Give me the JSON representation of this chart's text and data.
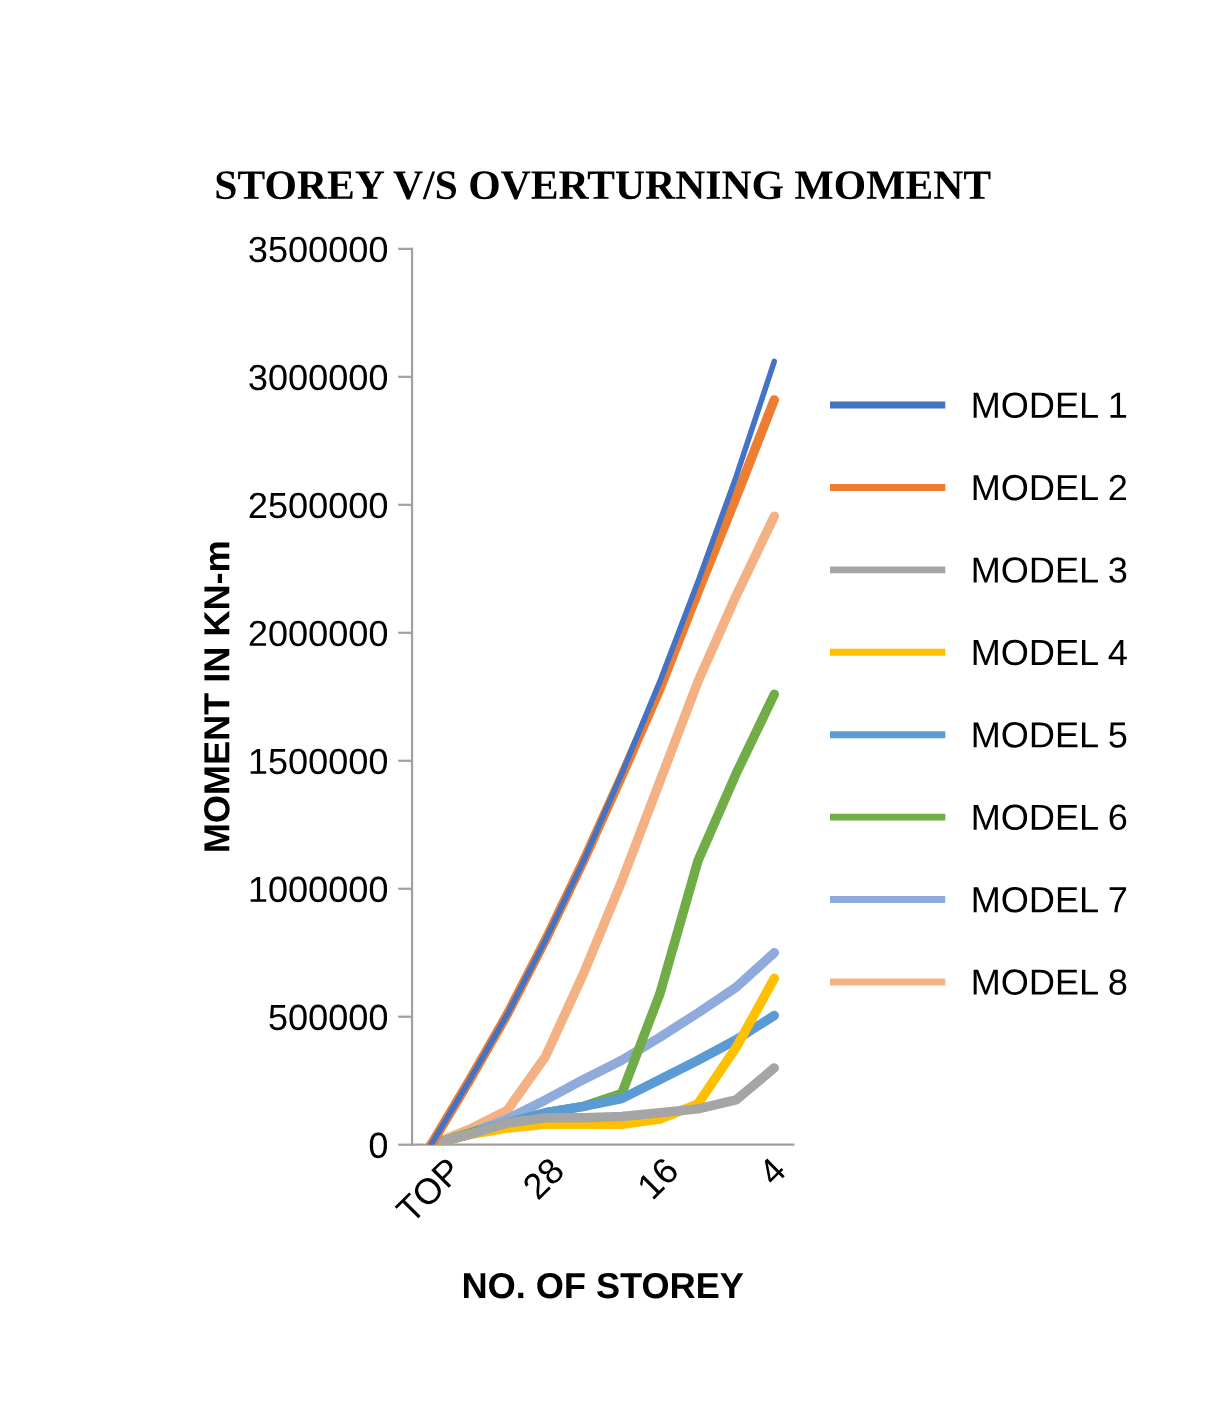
{
  "chart_data": {
    "type": "line",
    "title": "STOREY V/S OVERTURNING MOMENT",
    "xlabel": "NO. OF STOREY",
    "ylabel": "MOMENT IN KN-m",
    "categories": [
      "TOP",
      null,
      null,
      "28",
      null,
      null,
      "16",
      null,
      null,
      "4"
    ],
    "ylim": [
      0,
      3500000
    ],
    "yticks": [
      0,
      500000,
      1000000,
      1500000,
      2000000,
      2500000,
      3000000,
      3500000
    ],
    "grid": false,
    "legend": "right",
    "marker": "none",
    "line_style": "solid",
    "series": [
      {
        "name": "MODEL 1",
        "color": "#4472c4",
        "values": [
          0,
          250000,
          510000,
          800000,
          1110000,
          1450000,
          1810000,
          2200000,
          2610000,
          3060000
        ]
      },
      {
        "name": "MODEL 2",
        "color": "#ed7d31",
        "values": [
          0,
          250000,
          510000,
          800000,
          1110000,
          1440000,
          1780000,
          2160000,
          2530000,
          2910000
        ]
      },
      {
        "name": "MODEL 3",
        "color": "#a5a5a5",
        "values": [
          0,
          40000,
          85000,
          105000,
          105000,
          110000,
          125000,
          140000,
          175000,
          300000
        ]
      },
      {
        "name": "MODEL 4",
        "color": "#ffc000",
        "values": [
          0,
          40000,
          65000,
          80000,
          80000,
          80000,
          100000,
          160000,
          380000,
          650000
        ]
      },
      {
        "name": "MODEL 5",
        "color": "#5b9bd5",
        "values": [
          0,
          40000,
          85000,
          125000,
          150000,
          180000,
          255000,
          330000,
          410000,
          505000
        ]
      },
      {
        "name": "MODEL 6",
        "color": "#70ad47",
        "values": [
          0,
          45000,
          85000,
          125000,
          150000,
          200000,
          590000,
          1110000,
          1450000,
          1760000
        ]
      },
      {
        "name": "MODEL 7",
        "color": "#8faadc",
        "values": [
          0,
          45000,
          100000,
          175000,
          255000,
          330000,
          420000,
          515000,
          615000,
          750000
        ]
      },
      {
        "name": "MODEL 8",
        "color": "#f4b183",
        "values": [
          0,
          60000,
          135000,
          345000,
          670000,
          1030000,
          1420000,
          1810000,
          2145000,
          2455000
        ]
      }
    ]
  }
}
